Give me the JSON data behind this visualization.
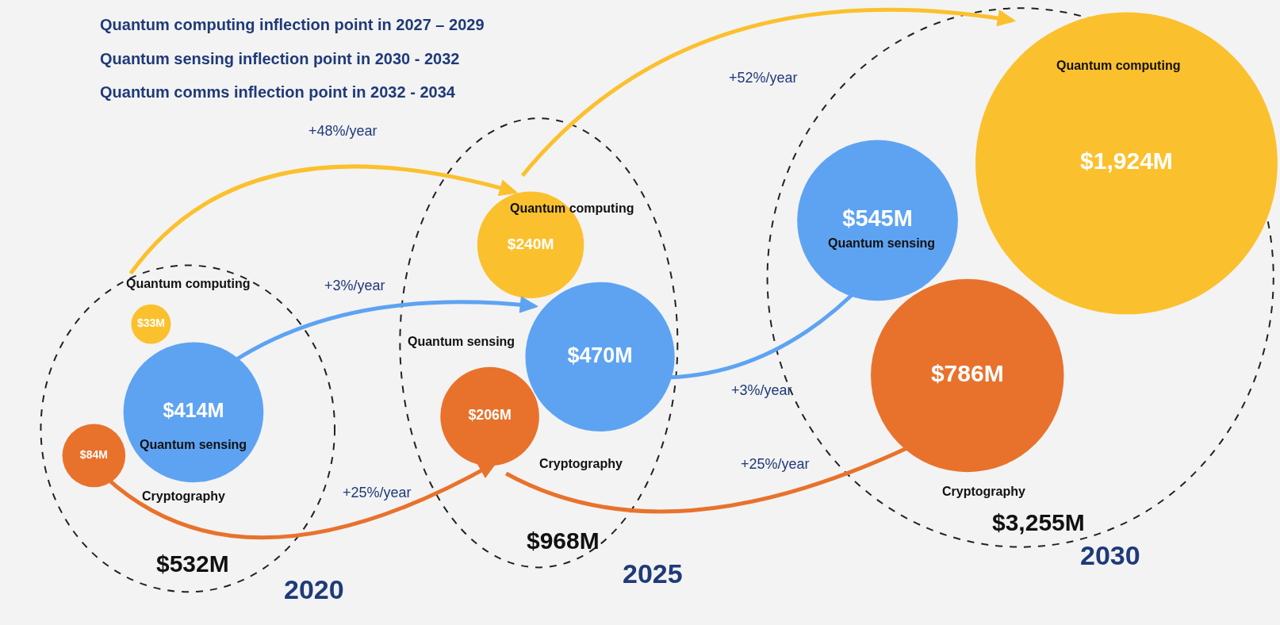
{
  "chart_data": {
    "type": "other",
    "categories": [
      "2020",
      "2025",
      "2030"
    ],
    "series": [
      {
        "name": "Quantum computing",
        "color": "#fbc02d",
        "values": [
          33,
          240,
          1924
        ],
        "value_labels": [
          "$33M",
          "$240M",
          "$1,924M"
        ]
      },
      {
        "name": "Quantum sensing",
        "color": "#5ea3f2",
        "values": [
          414,
          470,
          545
        ],
        "value_labels": [
          "$414M",
          "$470M",
          "$545M"
        ]
      },
      {
        "name": "Cryptography",
        "color": "#e8722c",
        "values": [
          84,
          206,
          786
        ],
        "value_labels": [
          "$84M",
          "$206M",
          "$786M"
        ]
      }
    ],
    "totals": [
      "$532M",
      "$968M",
      "$3,255M"
    ],
    "annotations": [
      "Quantum computing inflection point in 2027 – 2029",
      "Quantum sensing inflection point in 2030 - 2032",
      "Quantum comms inflection point in 2032 - 2034",
      "+48%/year",
      "+52%/year",
      "+3%/year",
      "+3%/year",
      "+25%/year",
      "+25%/year"
    ]
  }
}
